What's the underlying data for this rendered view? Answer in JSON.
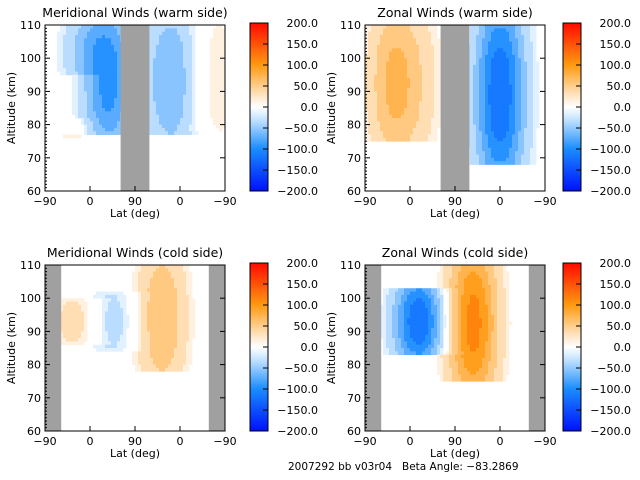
{
  "chart_data": [
    {
      "type": "heatmap",
      "subtype": "filled-contour",
      "title": "Meridional Winds (warm side)",
      "xlabel": "Lat (deg)",
      "ylabel": "Altitude (km)",
      "xticks": [
        "-90",
        "0",
        "90",
        "0",
        "-90"
      ],
      "yticks": [
        "60",
        "70",
        "80",
        "90",
        "100",
        "110"
      ],
      "ylim": [
        60,
        110
      ],
      "colorbar": {
        "ticks": [
          "200.0",
          "150.0",
          "100.0",
          "50.0",
          "0.0",
          "-50.0",
          "-100.0",
          "-150.0",
          "-200.0"
        ],
        "range": [
          -200,
          200
        ]
      },
      "no_data_bands": [
        {
          "lat_segment": "around 90 (pole)",
          "from": 0.42,
          "to": 0.58
        }
      ],
      "regions": [
        {
          "label": "strong southward",
          "center_frac": [
            0.35,
            0.75
          ],
          "value": -90,
          "alt_range": [
            77,
            110
          ]
        },
        {
          "label": "moderate southward",
          "center_frac": [
            0.7,
            0.7
          ],
          "value": -60,
          "alt_range": [
            77,
            110
          ]
        },
        {
          "label": "weak southward",
          "center_frac": [
            0.2,
            0.9
          ],
          "value": -30,
          "alt_range": [
            95,
            110
          ]
        },
        {
          "label": "weak positive",
          "center_frac": [
            0.95,
            0.85
          ],
          "value": 20,
          "alt_range": [
            78,
            110
          ]
        },
        {
          "label": "weak positive patch",
          "center_frac": [
            0.15,
            0.3
          ],
          "value": 15,
          "alt_range": [
            75,
            82
          ]
        }
      ]
    },
    {
      "type": "heatmap",
      "subtype": "filled-contour",
      "title": "Zonal Winds (warm side)",
      "xlabel": "Lat (deg)",
      "ylabel": "Altitude (km)",
      "xticks": [
        "-90",
        "0",
        "90",
        "0",
        "-90"
      ],
      "yticks": [
        "60",
        "70",
        "80",
        "90",
        "100",
        "110"
      ],
      "ylim": [
        60,
        110
      ],
      "colorbar": {
        "ticks": [
          "200.0",
          "150.0",
          "100.0",
          "50.0",
          "0.0",
          "-50.0",
          "-100.0",
          "-150.0",
          "-200.0"
        ],
        "range": [
          -200,
          200
        ]
      },
      "no_data_bands": [
        {
          "lat_segment": "around 90 (pole)",
          "from": 0.42,
          "to": 0.58
        }
      ],
      "regions": [
        {
          "label": "eastward",
          "center_frac": [
            0.15,
            0.75
          ],
          "value": 60,
          "alt_range": [
            75,
            110
          ]
        },
        {
          "label": "weak eastward",
          "center_frac": [
            0.3,
            0.7
          ],
          "value": 25,
          "alt_range": [
            75,
            110
          ]
        },
        {
          "label": "strong westward",
          "center_frac": [
            0.75,
            0.7
          ],
          "value": -120,
          "alt_range": [
            68,
            110
          ]
        }
      ]
    },
    {
      "type": "heatmap",
      "subtype": "filled-contour",
      "title": "Meridional Winds (cold side)",
      "xlabel": "Lat (deg)",
      "ylabel": "Altitude (km)",
      "xticks": [
        "-90",
        "0",
        "90",
        "0",
        "-90"
      ],
      "yticks": [
        "60",
        "70",
        "80",
        "90",
        "100",
        "110"
      ],
      "ylim": [
        60,
        110
      ],
      "colorbar": {
        "ticks": [
          "200.0",
          "150.0",
          "100.0",
          "50.0",
          "0.0",
          "-50.0",
          "-100.0",
          "-150.0",
          "-200.0"
        ],
        "range": [
          -200,
          200
        ]
      },
      "no_data_bands": [
        {
          "from": 0.0,
          "to": 0.09
        },
        {
          "from": 0.91,
          "to": 1.0
        }
      ],
      "regions": [
        {
          "label": "positive core",
          "center_frac": [
            0.65,
            0.6
          ],
          "value": 60,
          "alt_range": [
            78,
            110
          ]
        },
        {
          "label": "weak negative",
          "center_frac": [
            0.38,
            0.62
          ],
          "value": -30,
          "alt_range": [
            84,
            102
          ]
        },
        {
          "label": "oscillating positive",
          "center_frac": [
            0.17,
            0.6
          ],
          "value": 30,
          "alt_range": [
            86,
            100
          ]
        }
      ]
    },
    {
      "type": "heatmap",
      "subtype": "filled-contour",
      "title": "Zonal Winds (cold side)",
      "xlabel": "Lat (deg)",
      "ylabel": "Altitude (km)",
      "xticks": [
        "-90",
        "0",
        "90",
        "0",
        "-90"
      ],
      "yticks": [
        "60",
        "70",
        "80",
        "90",
        "100",
        "110"
      ],
      "ylim": [
        60,
        110
      ],
      "colorbar": {
        "ticks": [
          "200.0",
          "150.0",
          "100.0",
          "50.0",
          "0.0",
          "-50.0",
          "-100.0",
          "-150.0",
          "-200.0"
        ],
        "range": [
          -200,
          200
        ]
      },
      "no_data_bands": [
        {
          "from": 0.0,
          "to": 0.09
        },
        {
          "from": 0.91,
          "to": 1.0
        }
      ],
      "regions": [
        {
          "label": "westward jet",
          "center_frac": [
            0.3,
            0.6
          ],
          "value": -120,
          "alt_range": [
            83,
            103
          ]
        },
        {
          "label": "eastward jet",
          "center_frac": [
            0.6,
            0.6
          ],
          "value": 110,
          "alt_range": [
            75,
            110
          ]
        }
      ]
    }
  ],
  "footer": {
    "id_text": "2007292 bb v03r04",
    "beta_text": "Beta Angle: -83.2869"
  }
}
